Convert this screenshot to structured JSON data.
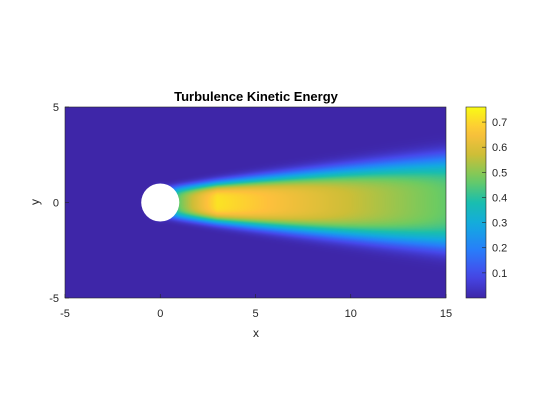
{
  "chart_data": {
    "type": "heatmap",
    "title": "Turbulence Kinetic Energy",
    "xlabel": "x",
    "ylabel": "y",
    "xlim": [
      -5,
      15
    ],
    "ylim": [
      -5,
      5
    ],
    "xticks": [
      -5,
      0,
      5,
      10,
      15
    ],
    "yticks": [
      -5,
      0,
      5
    ],
    "colormap": "parula",
    "colorbar": {
      "range": [
        0.0,
        0.76
      ],
      "ticks": [
        0.1,
        0.2,
        0.3,
        0.4,
        0.5,
        0.6,
        0.7
      ]
    },
    "obstacle": {
      "shape": "circle",
      "center": [
        0,
        0
      ],
      "radius": 0.5,
      "color": "#ffffff"
    },
    "field": {
      "description": "wake behind cylinder",
      "background_value": 0.0,
      "peak_value": 0.72,
      "peak_location": [
        3.0,
        0.0
      ],
      "wake_value_at_x15": 0.46,
      "wake_half_width_at_x15": 1.6
    }
  }
}
